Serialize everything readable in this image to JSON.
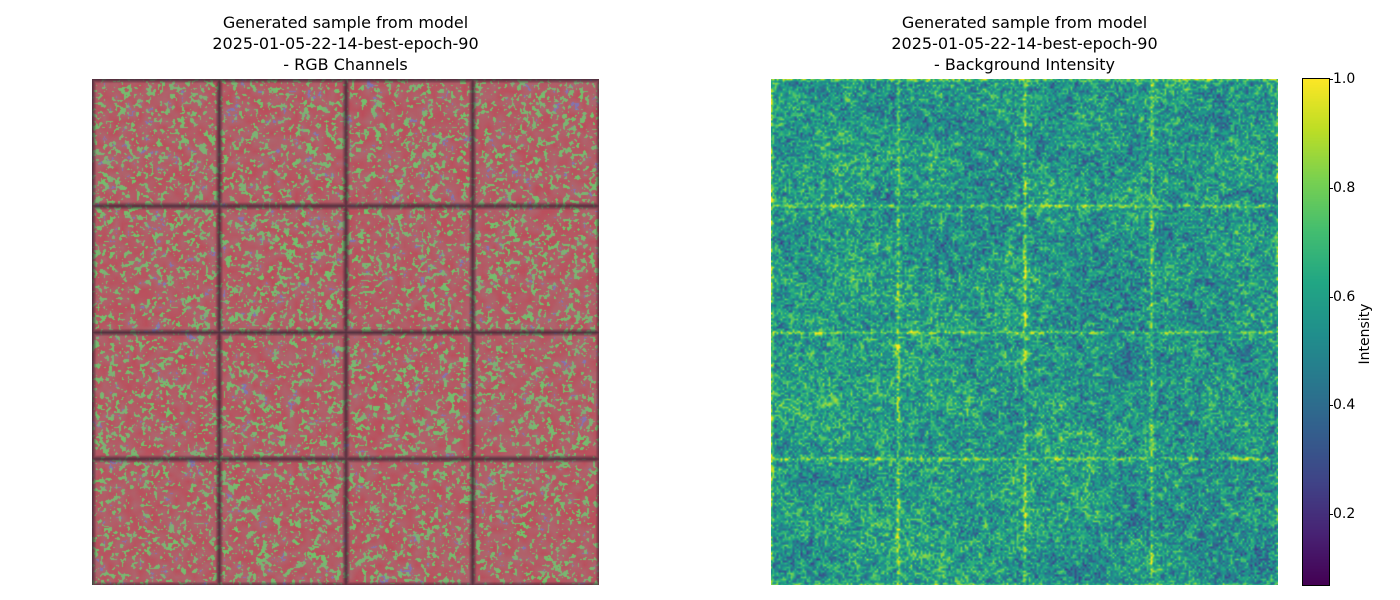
{
  "panels": [
    {
      "title": "Generated sample from model\n2025-01-05-22-14-best-epoch-90\n- RGB Channels",
      "grid": {
        "rows": 4,
        "cols": 4
      },
      "colors": {
        "red": "#c8384a",
        "green": "#63d85c",
        "blue": "#6a55e0",
        "grid_line": "#3a2434"
      }
    },
    {
      "title": "Generated sample from model\n2025-01-05-22-14-best-epoch-90\n- Background Intensity",
      "grid": {
        "rows": 4,
        "cols": 4
      },
      "colormap": "viridis"
    }
  ],
  "colorbar": {
    "label": "Intensity",
    "range": [
      0.07,
      1.0
    ],
    "ticks": [
      {
        "value": 0.2,
        "label": "0.2"
      },
      {
        "value": 0.4,
        "label": "0.4"
      },
      {
        "value": 0.6,
        "label": "0.6"
      },
      {
        "value": 0.8,
        "label": "0.8"
      },
      {
        "value": 1.0,
        "label": "1.0"
      }
    ]
  }
}
